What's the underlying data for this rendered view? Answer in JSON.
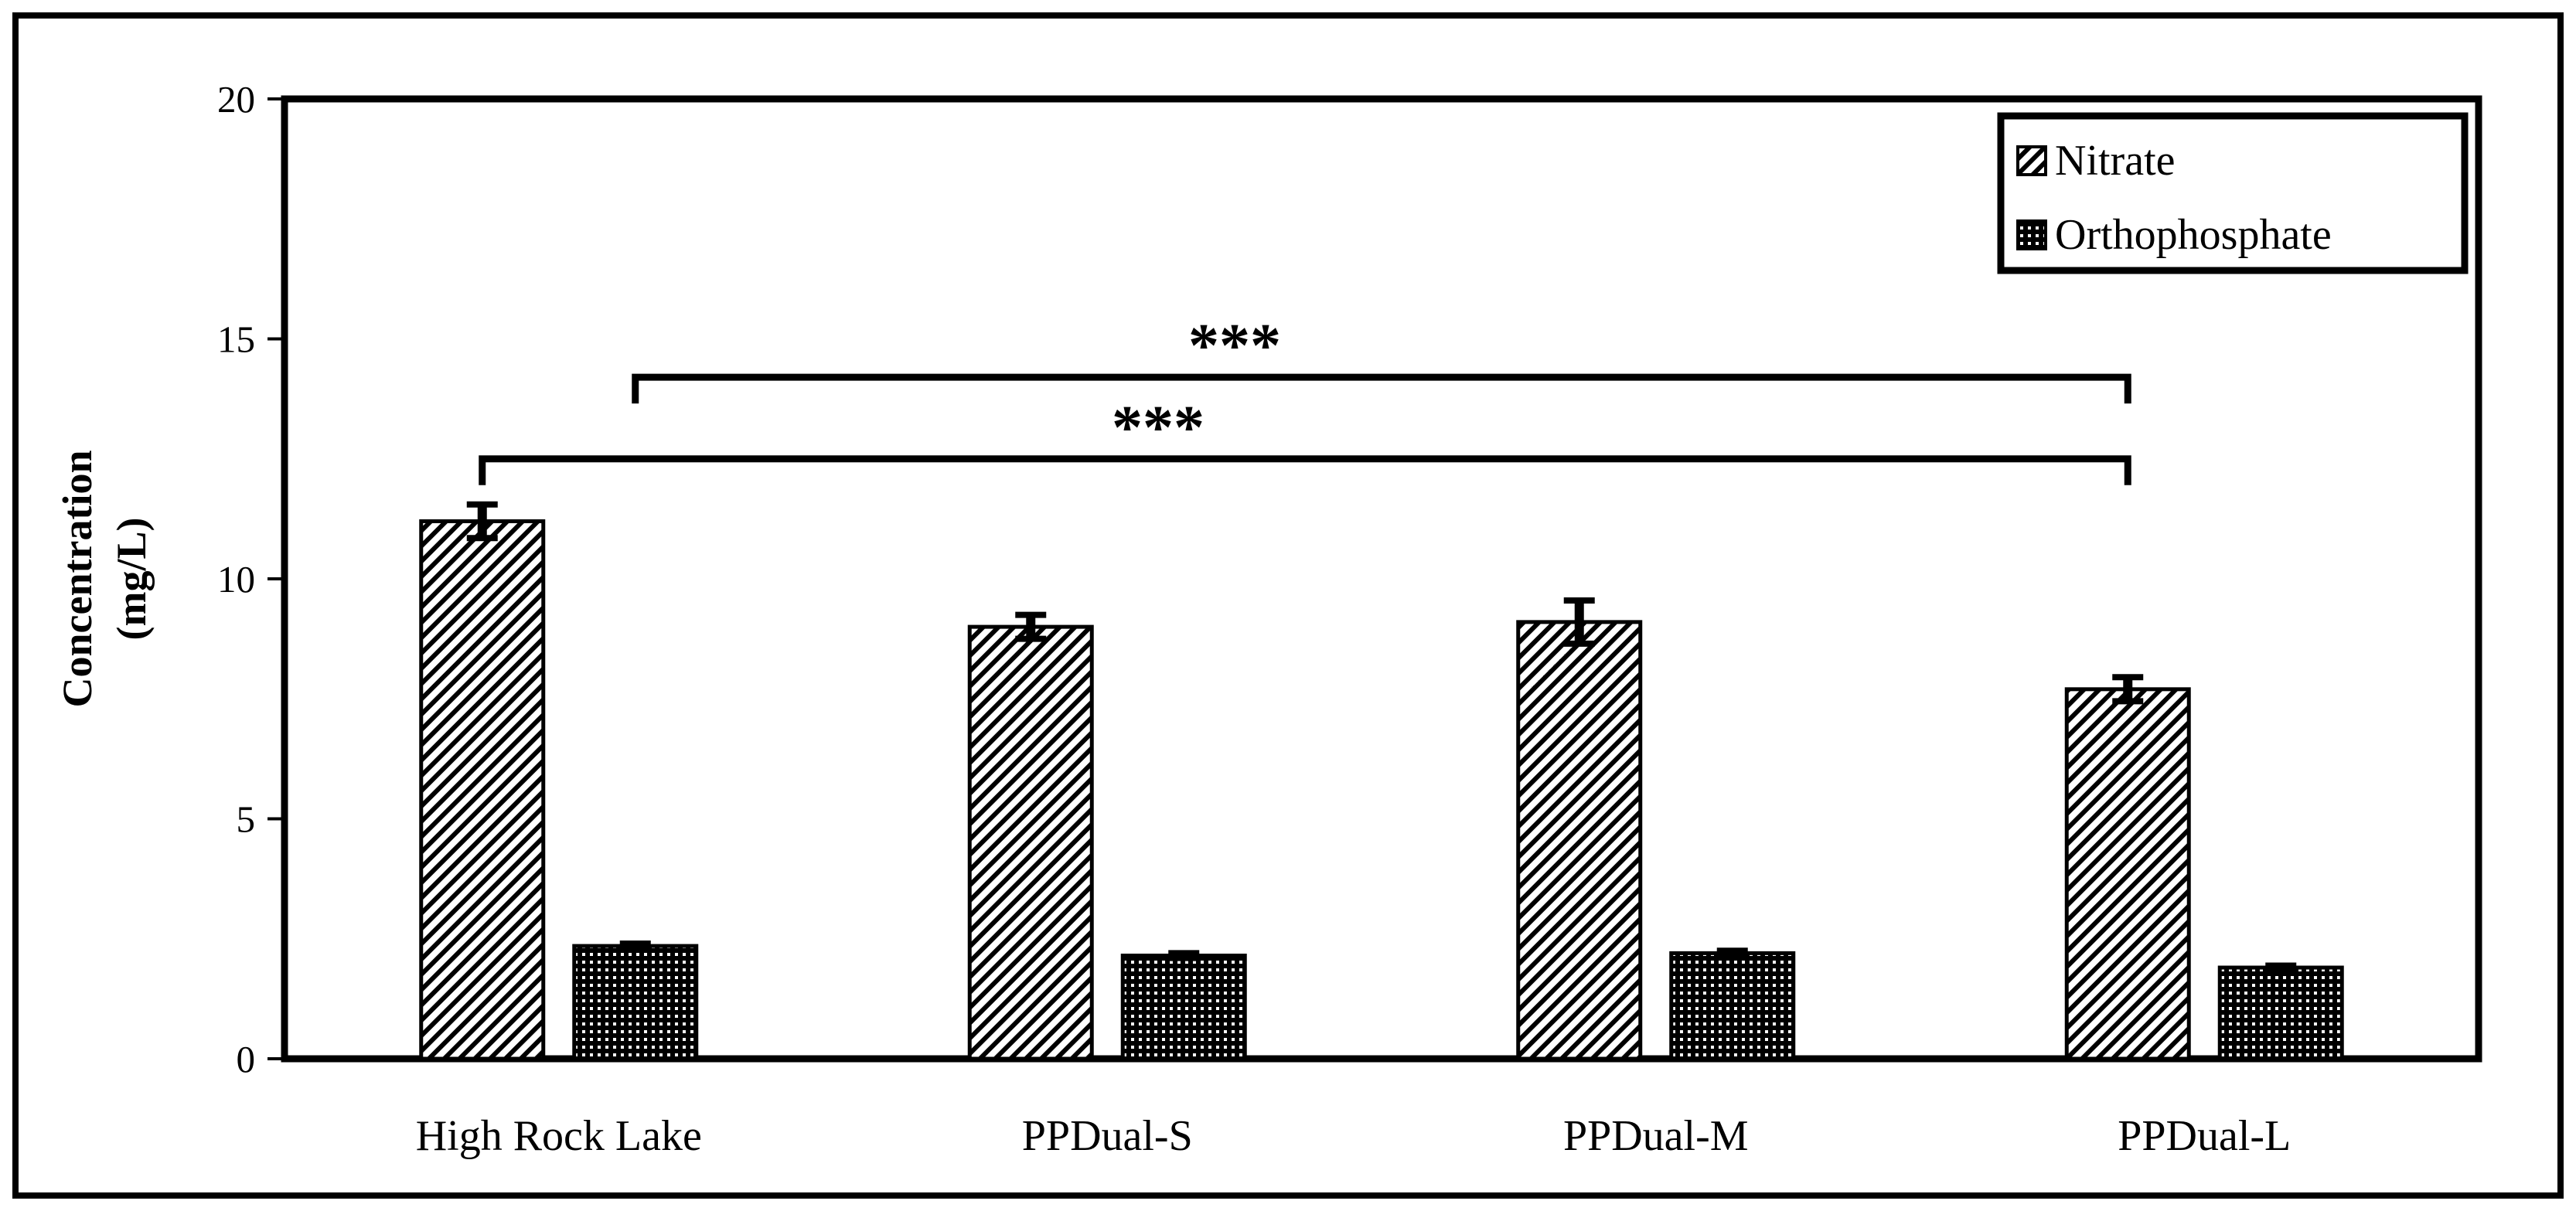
{
  "chart_data": {
    "type": "bar",
    "title": "",
    "xlabel": "",
    "ylabel": [
      "Concentration",
      "(mg/L)"
    ],
    "categories": [
      "High Rock Lake",
      "PPDual-S",
      "PPDual-M",
      "PPDual-L"
    ],
    "series": [
      {
        "name": "Nitrate",
        "pattern": "diagonal-hatch",
        "values": [
          11.2,
          9.0,
          9.1,
          7.7
        ],
        "errors": [
          0.35,
          0.25,
          0.45,
          0.25
        ]
      },
      {
        "name": "Orthophosphate",
        "pattern": "dotted",
        "values": [
          2.35,
          2.15,
          2.2,
          1.9
        ],
        "errors": [
          0.05,
          0.05,
          0.05,
          0.04
        ]
      }
    ],
    "ylim": [
      0,
      20
    ],
    "yticks": [
      "0",
      "5",
      "10",
      "15",
      "20"
    ],
    "grid": false,
    "legend_position": "top-right",
    "significance": [
      {
        "from_category": "High Rock Lake",
        "to_category": "PPDual-L",
        "from_series": "Orthophosphate",
        "to_series": "Nitrate",
        "level": 14.2,
        "label": "***"
      },
      {
        "from_category": "High Rock Lake",
        "to_category": "PPDual-L",
        "from_series": "Nitrate",
        "to_series": "Nitrate",
        "level": 12.5,
        "label": "***"
      }
    ],
    "colors": {
      "bar_fill": "#ffffff",
      "bar_stroke": "#000000",
      "axis": "#000000"
    }
  }
}
